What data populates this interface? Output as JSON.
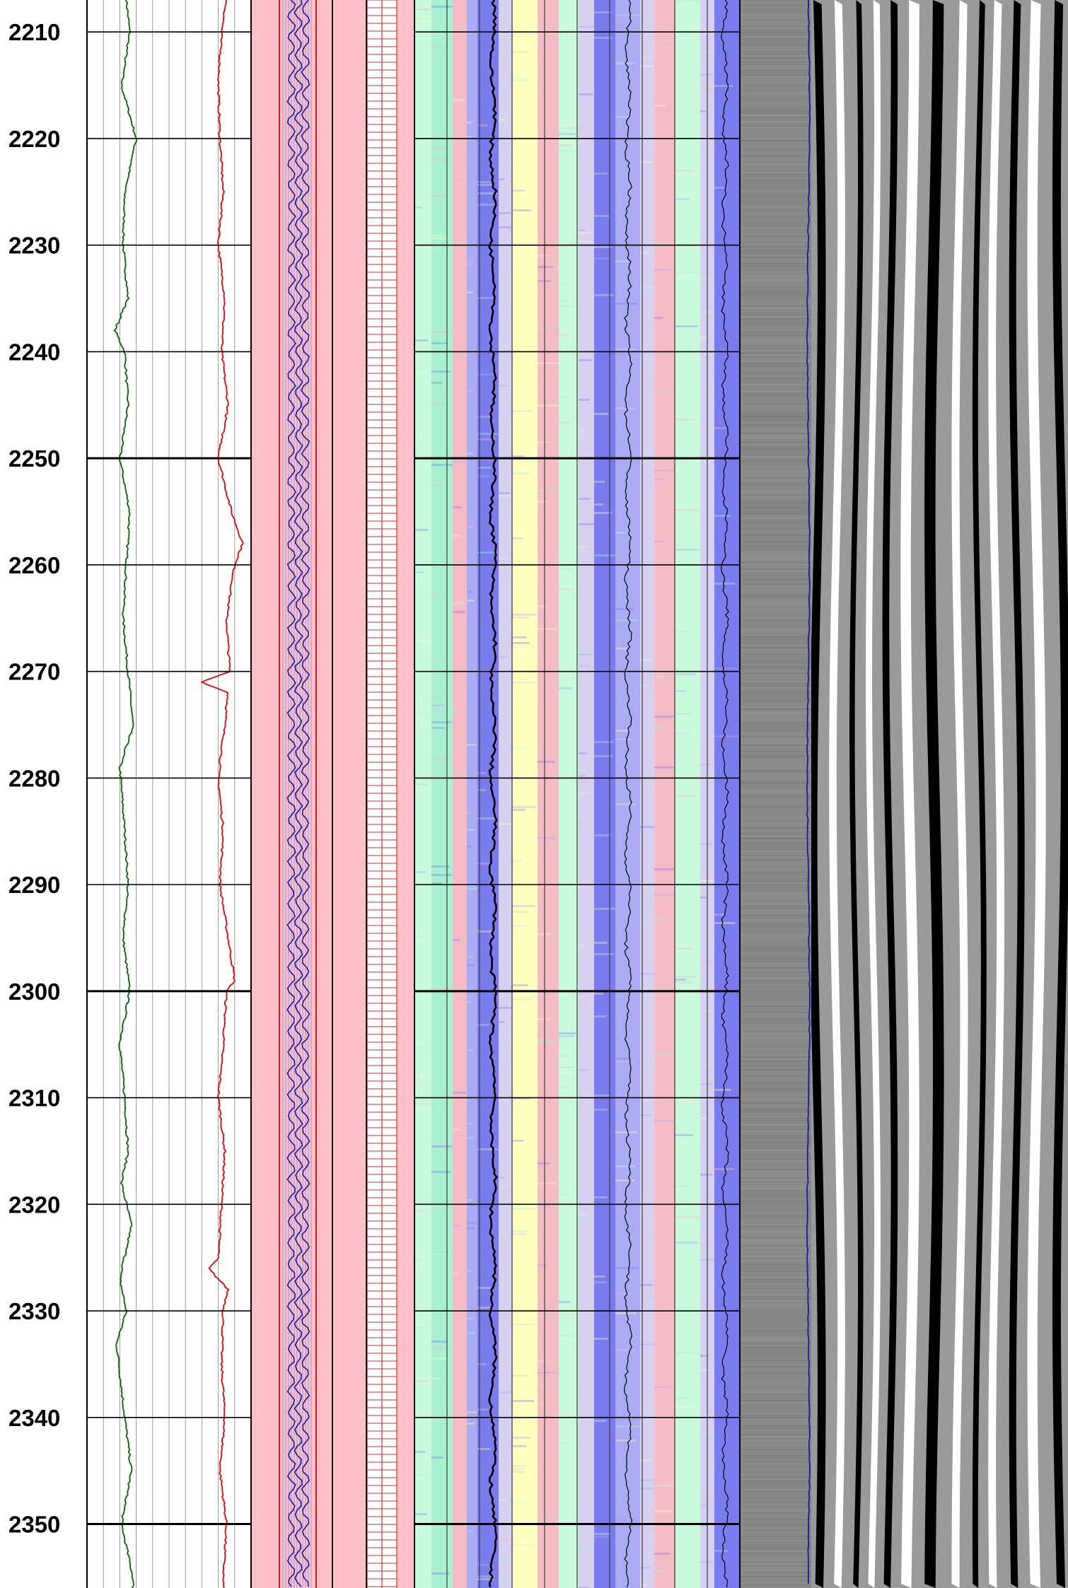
{
  "chart_data": {
    "type": "line",
    "y_axis": {
      "reversed": true,
      "range": [
        2207,
        2356
      ],
      "major_step": 10,
      "tick_labels": [
        "2210",
        "2220",
        "2230",
        "2240",
        "2250",
        "2260",
        "2270",
        "2280",
        "2290",
        "2300",
        "2310",
        "2320",
        "2330",
        "2340",
        "2350"
      ]
    },
    "grid": true,
    "tracks": [
      {
        "type": "curves",
        "curves": [
          {
            "color": "#1e6b1e",
            "depth": [
              2207,
              2210,
              2215,
              2220,
              2225,
              2230,
              2235,
              2238,
              2240,
              2245,
              2250,
              2255,
              2260,
              2265,
              2270,
              2275,
              2279,
              2285,
              2290,
              2295,
              2300,
              2305,
              2310,
              2315,
              2318,
              2322,
              2327,
              2330,
              2333,
              2340,
              2345,
              2350,
              2355
            ],
            "value": [
              0.24,
              0.26,
              0.21,
              0.3,
              0.23,
              0.22,
              0.25,
              0.17,
              0.23,
              0.25,
              0.2,
              0.26,
              0.24,
              0.22,
              0.25,
              0.28,
              0.2,
              0.23,
              0.25,
              0.22,
              0.26,
              0.2,
              0.23,
              0.25,
              0.21,
              0.27,
              0.2,
              0.24,
              0.18,
              0.23,
              0.27,
              0.21,
              0.28
            ]
          },
          {
            "color": "#d01c1c",
            "depth": [
              2207,
              2210,
              2215,
              2220,
              2225,
              2230,
              2235,
              2240,
              2245,
              2250,
              2255,
              2258,
              2260,
              2265,
              2270,
              2271,
              2272,
              2275,
              2280,
              2285,
              2290,
              2295,
              2299,
              2300,
              2305,
              2310,
              2315,
              2320,
              2325,
              2326,
              2328,
              2330,
              2335,
              2340,
              2345,
              2350,
              2355
            ],
            "value": [
              0.85,
              0.82,
              0.8,
              0.81,
              0.83,
              0.8,
              0.84,
              0.82,
              0.86,
              0.8,
              0.88,
              0.95,
              0.9,
              0.85,
              0.87,
              0.7,
              0.86,
              0.84,
              0.8,
              0.83,
              0.81,
              0.86,
              0.9,
              0.85,
              0.83,
              0.8,
              0.84,
              0.82,
              0.8,
              0.74,
              0.86,
              0.83,
              0.82,
              0.84,
              0.81,
              0.85,
              0.83
            ]
          }
        ]
      },
      {
        "type": "waveform-trace",
        "line_color": "#1a1aa0",
        "background": "#ffc0c8"
      },
      {
        "type": "fill-track",
        "background": "#ffc0c8"
      },
      {
        "type": "red-hatched-track",
        "background": "#ffc0c8"
      },
      {
        "type": "variable-density-spectrum",
        "palette": [
          "#7b7bf0",
          "#aaaaf5",
          "#d7d0f0",
          "#f4bcc4",
          "#ffffc0",
          "#c8fadc",
          "#a8f0d0"
        ]
      },
      {
        "type": "gray-background-with-trace",
        "line_color": "#1a1aa0"
      },
      {
        "type": "vdl-waveform",
        "palette": [
          "#000000",
          "#ffffff"
        ]
      }
    ]
  }
}
